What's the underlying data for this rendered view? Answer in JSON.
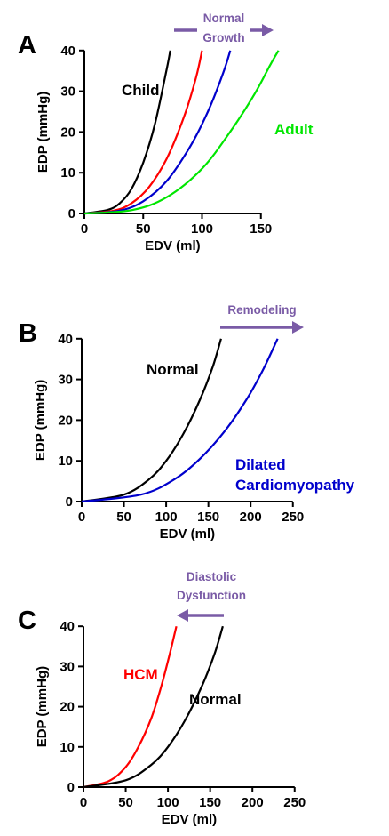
{
  "colors": {
    "purple": "#7a5ba6",
    "black": "#000000",
    "red": "#ff0000",
    "blue": "#0000cc",
    "green": "#00e600"
  },
  "chart_data": [
    {
      "panel": "A",
      "type": "line",
      "xlabel": "EDV (ml)",
      "ylabel": "EDP (mmHg)",
      "xlim": [
        0,
        170
      ],
      "ylim": [
        0,
        40
      ],
      "xticks": [
        0,
        50,
        100,
        150
      ],
      "yticks": [
        0,
        10,
        20,
        30,
        40
      ],
      "series": [
        {
          "color": "#000000",
          "x": [
            0,
            20,
            30,
            40,
            50,
            60,
            70,
            73
          ],
          "y": [
            0,
            0.9,
            2.5,
            6,
            12.5,
            22,
            35.5,
            40
          ]
        },
        {
          "color": "#ff0000",
          "x": [
            0,
            25,
            40,
            55,
            70,
            85,
            95,
            100
          ],
          "y": [
            0,
            0.7,
            2.5,
            6.5,
            13.5,
            24,
            33.5,
            40
          ]
        },
        {
          "color": "#0000cc",
          "x": [
            0,
            30,
            50,
            70,
            90,
            105,
            118,
            124
          ],
          "y": [
            0,
            0.7,
            3,
            8,
            16.5,
            25,
            34.5,
            40
          ]
        },
        {
          "color": "#00e600",
          "x": [
            0,
            40,
            70,
            100,
            125,
            145,
            158,
            165
          ],
          "y": [
            0,
            0.8,
            4,
            11,
            20.5,
            29.5,
            36.5,
            40
          ]
        }
      ],
      "annotations": [
        {
          "text": "Child",
          "color": "#000000"
        },
        {
          "text": "Adult",
          "color": "#00e600"
        }
      ],
      "arrow": {
        "direction": "right",
        "lines": [
          "Normal",
          "Growth"
        ]
      }
    },
    {
      "panel": "B",
      "type": "line",
      "xlabel": "EDV (ml)",
      "ylabel": "EDP (mmHg)",
      "xlim": [
        0,
        250
      ],
      "ylim": [
        0,
        40
      ],
      "xticks": [
        0,
        50,
        100,
        150,
        200,
        250
      ],
      "yticks": [
        0,
        10,
        20,
        30,
        40
      ],
      "series": [
        {
          "color": "#000000",
          "x": [
            0,
            50,
            80,
            100,
            120,
            140,
            155,
            165
          ],
          "y": [
            0,
            1.7,
            5.5,
            10,
            16.5,
            25,
            33,
            40
          ]
        },
        {
          "color": "#0000cc",
          "x": [
            0,
            70,
            110,
            140,
            170,
            195,
            215,
            232
          ],
          "y": [
            0,
            1.7,
            5.5,
            10.5,
            17.5,
            25,
            32.5,
            40
          ]
        }
      ],
      "annotations": [
        {
          "text": "Normal",
          "color": "#000000"
        },
        {
          "text": "Dilated",
          "color": "#0000cc"
        },
        {
          "text": "Cardiomyopathy",
          "color": "#0000cc"
        }
      ],
      "arrow": {
        "direction": "right",
        "lines": [
          "Remodeling"
        ]
      }
    },
    {
      "panel": "C",
      "type": "line",
      "xlabel": "EDV (ml)",
      "ylabel": "EDP (mmHg)",
      "xlim": [
        0,
        250
      ],
      "ylim": [
        0,
        40
      ],
      "xticks": [
        0,
        50,
        100,
        150,
        200,
        250
      ],
      "yticks": [
        0,
        10,
        20,
        30,
        40
      ],
      "series": [
        {
          "color": "#ff0000",
          "x": [
            0,
            30,
            50,
            65,
            80,
            92,
            102,
            110
          ],
          "y": [
            0,
            1.5,
            5,
            10,
            17,
            25,
            33,
            40
          ]
        },
        {
          "color": "#000000",
          "x": [
            0,
            50,
            80,
            100,
            120,
            140,
            155,
            165
          ],
          "y": [
            0,
            1.7,
            5.5,
            10,
            16.5,
            25,
            33,
            40
          ]
        }
      ],
      "annotations": [
        {
          "text": "HCM",
          "color": "#ff0000"
        },
        {
          "text": "Normal",
          "color": "#000000"
        }
      ],
      "arrow": {
        "direction": "left",
        "lines": [
          "Diastolic",
          "Dysfunction"
        ]
      }
    }
  ]
}
